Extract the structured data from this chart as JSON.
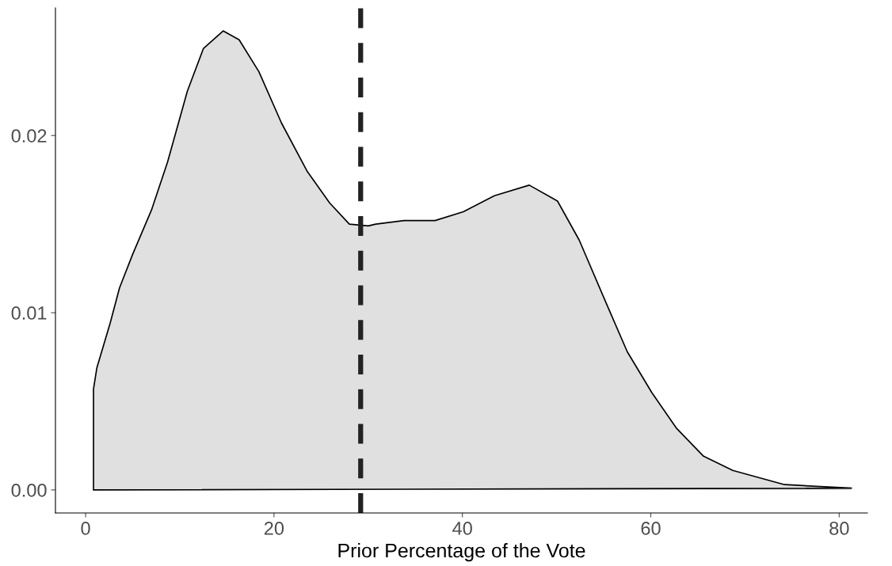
{
  "chart_data": {
    "type": "area",
    "xlabel": "Prior Percentage of the Vote",
    "x": [
      0.84,
      0.84,
      1.2,
      2.6,
      3.6,
      5.0,
      7.0,
      8.7,
      10.8,
      12.5,
      14.6,
      16.3,
      18.4,
      20.8,
      23.5,
      25.9,
      28.0,
      30.0,
      30.8,
      33.8,
      37.1,
      40.1,
      43.4,
      47.1,
      50.1,
      52.4,
      55.3,
      57.5,
      60.1,
      62.7,
      65.6,
      68.7,
      74.2,
      81.3
    ],
    "series": [
      {
        "color": "#e0e0e0",
        "values": [
          0,
          0.0057,
          0.0069,
          0.0094,
          0.0114,
          0.0133,
          0.0158,
          0.0185,
          0.0225,
          0.0249,
          0.0259,
          0.0254,
          0.0236,
          0.0207,
          0.018,
          0.0162,
          0.015,
          0.0149,
          0.015,
          0.0152,
          0.0152,
          0.0157,
          0.0166,
          0.0172,
          0.0163,
          0.0141,
          0.0105,
          0.0078,
          0.0055,
          0.0035,
          0.0019,
          0.0011,
          0.0003,
          0.0001
        ]
      }
    ],
    "xlim": [
      -3.2,
      83
    ],
    "xticks": [
      0,
      20,
      40,
      60,
      80
    ],
    "ylim": [
      -0.0013,
      0.0272
    ],
    "yticks": [
      {
        "value": 0,
        "label": "0.00"
      },
      {
        "value": 0.01,
        "label": "0.01"
      },
      {
        "value": 0.02,
        "label": "0.02"
      }
    ],
    "ref_lines": [
      {
        "axis": "x",
        "value": 29.2,
        "color": "#222222",
        "line_style": "dashed"
      }
    ],
    "grid": false
  }
}
